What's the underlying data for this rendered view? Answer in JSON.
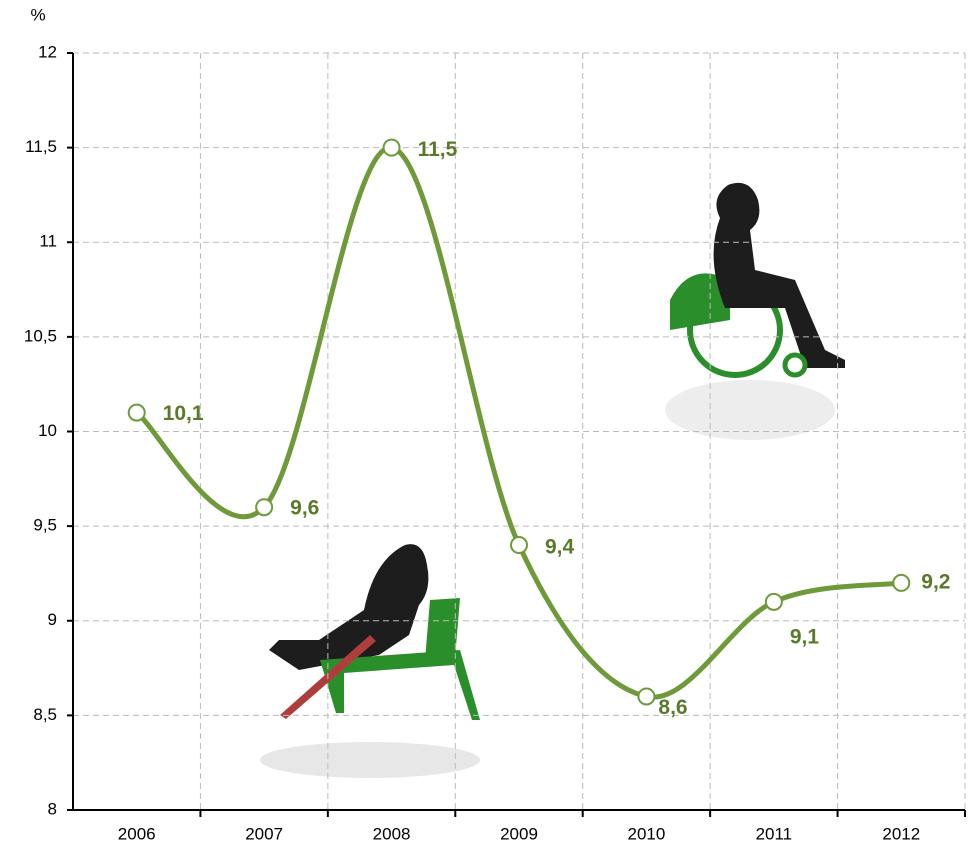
{
  "chart_data": {
    "type": "line",
    "y_label": "%",
    "categories": [
      "2006",
      "2007",
      "2008",
      "2009",
      "2010",
      "2011",
      "2012"
    ],
    "values": [
      10.1,
      9.6,
      11.5,
      9.4,
      8.6,
      9.1,
      9.2
    ],
    "value_labels": [
      "10,1",
      "9,6",
      "11,5",
      "9,4",
      "8,6",
      "9,1",
      "9,2"
    ],
    "color": "#6e9a3a",
    "ylim": [
      8,
      12
    ],
    "yticks": [
      8,
      {
        "value": 8.5,
        "label": "8,5"
      },
      9,
      {
        "value": 9.5,
        "label": "9,5"
      },
      10,
      {
        "value": 10.5,
        "label": "10,5"
      },
      11,
      {
        "value": 11.5,
        "label": "11,5"
      },
      12
    ],
    "grid": true
  }
}
